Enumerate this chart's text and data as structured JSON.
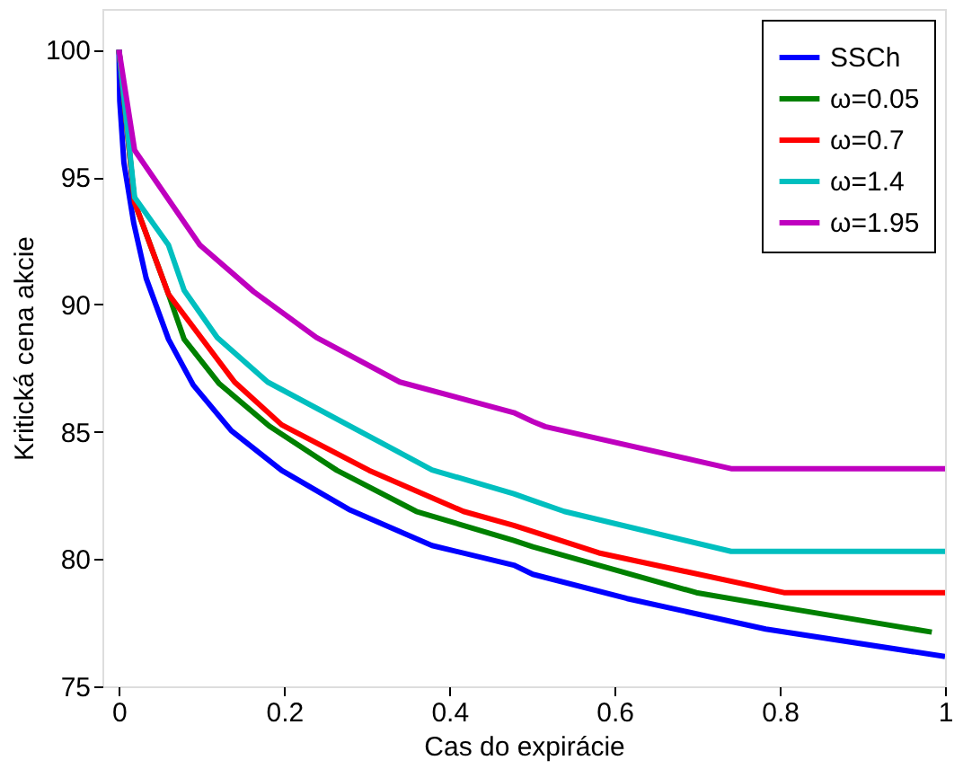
{
  "chart_data": {
    "type": "line",
    "xlabel": "Cas do expirácie",
    "ylabel": "Kritická cena akcie",
    "xlim": [
      -0.02,
      1
    ],
    "ylim": [
      75,
      101.6
    ],
    "xticks": [
      0,
      0.2,
      0.4,
      0.6,
      0.8,
      1
    ],
    "yticks": [
      75,
      80,
      85,
      90,
      95,
      100
    ],
    "grid": false,
    "legend": "top right",
    "marker": "none",
    "line_style": "solid",
    "series": [
      {
        "name": "SSCh",
        "color": "#0000ff",
        "x": [
          0,
          0.001,
          0.006,
          0.018,
          0.033,
          0.06,
          0.09,
          0.136,
          0.197,
          0.28,
          0.379,
          0.478,
          0.501,
          0.615,
          0.783,
          1.0
        ],
        "values": [
          100,
          97.97,
          95.57,
          93.18,
          91.02,
          88.63,
          86.83,
          85.04,
          83.48,
          81.92,
          80.53,
          79.76,
          79.4,
          78.45,
          77.25,
          76.17
        ]
      },
      {
        "name": "ω=0.05",
        "color": "#008000",
        "x": [
          0,
          0.019,
          0.06,
          0.079,
          0.121,
          0.182,
          0.264,
          0.36,
          0.478,
          0.501,
          0.699,
          0.805,
          0.984
        ],
        "values": [
          100,
          94.0,
          90.4,
          88.63,
          86.9,
          85.22,
          83.48,
          81.87,
          80.73,
          80.48,
          78.68,
          78.09,
          77.13
        ]
      },
      {
        "name": "ω=0.7",
        "color": "#ff0000",
        "x": [
          0,
          0.019,
          0.06,
          0.14,
          0.197,
          0.303,
          0.417,
          0.478,
          0.501,
          0.581,
          0.805,
          1.0
        ],
        "values": [
          100,
          94.0,
          90.4,
          86.95,
          85.27,
          83.48,
          81.87,
          81.32,
          81.08,
          80.24,
          78.68,
          78.68
        ]
      },
      {
        "name": "ω=1.4",
        "color": "#00bfbf",
        "x": [
          0,
          0.019,
          0.06,
          0.079,
          0.119,
          0.18,
          0.379,
          0.478,
          0.501,
          0.539,
          0.741,
          1.0
        ],
        "values": [
          100,
          94.2,
          92.33,
          90.55,
          88.7,
          86.95,
          83.5,
          82.56,
          82.3,
          81.87,
          80.3,
          80.3
        ]
      },
      {
        "name": "ω=1.95",
        "color": "#bf00bf",
        "x": [
          0,
          0.019,
          0.098,
          0.163,
          0.239,
          0.34,
          0.478,
          0.501,
          0.516,
          0.741,
          1.0
        ],
        "values": [
          100,
          96.05,
          92.33,
          90.5,
          88.7,
          86.95,
          85.75,
          85.4,
          85.2,
          83.55,
          83.55
        ]
      }
    ]
  }
}
